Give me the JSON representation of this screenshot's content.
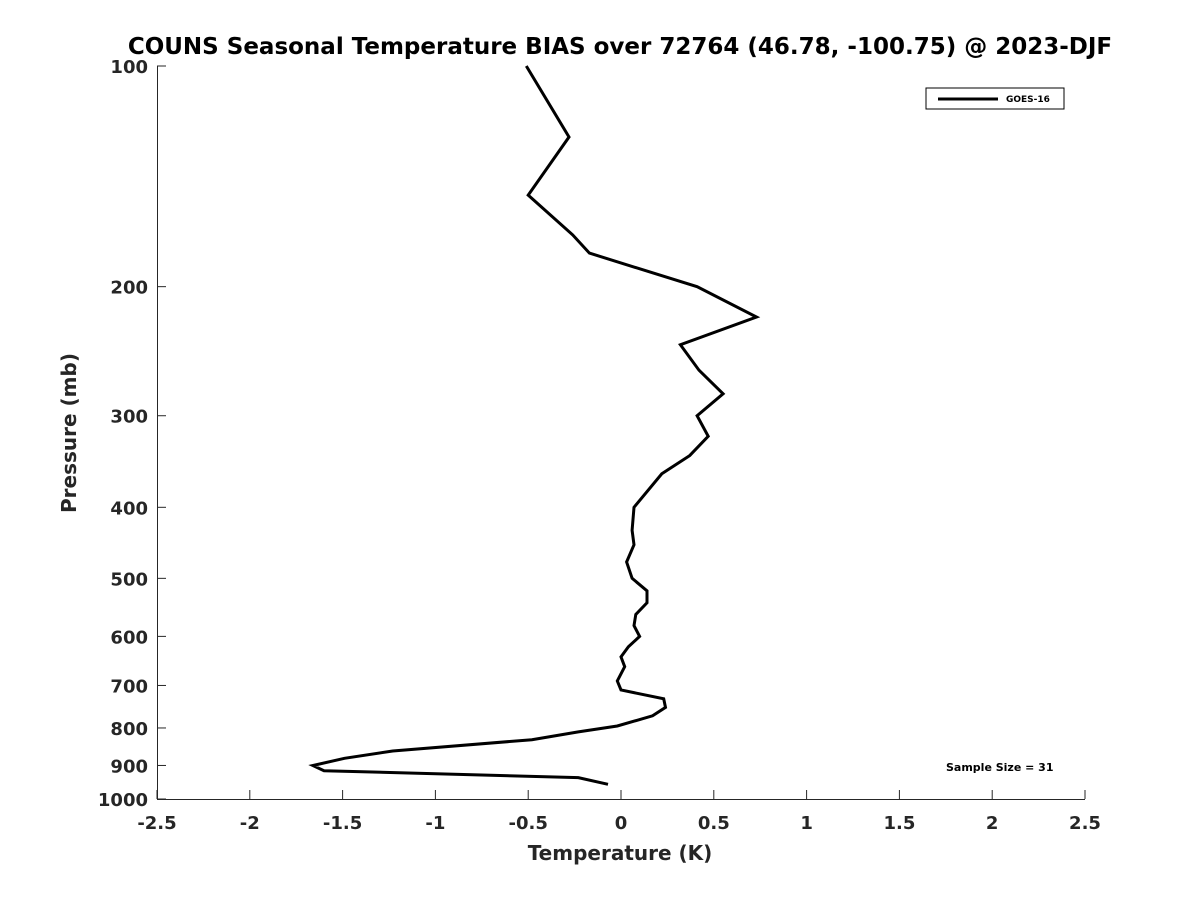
{
  "chart_data": {
    "type": "line",
    "title": "COUNS Seasonal Temperature BIAS over 72764 (46.78, -100.75) @ 2023-DJF",
    "xlabel": "Temperature (K)",
    "ylabel": "Pressure (mb)",
    "xlim": [
      -2.5,
      2.5
    ],
    "ylim": [
      100,
      1000
    ],
    "y_scale": "log",
    "y_reversed": true,
    "x_ticks": [
      "-2.5",
      "-2",
      "-1.5",
      "-1",
      "-0.5",
      "0",
      "0.5",
      "1",
      "1.5",
      "2",
      "2.5"
    ],
    "y_ticks": [
      "100",
      "200",
      "300",
      "400",
      "500",
      "600",
      "700",
      "800",
      "900",
      "1000"
    ],
    "grid": false,
    "legend": "top-right",
    "annotation": "Sample Size = 31",
    "line_color": "#000000",
    "series": [
      {
        "name": "GOES-16",
        "points": [
          [
            -0.51,
            100
          ],
          [
            -0.28,
            125
          ],
          [
            -0.5,
            150
          ],
          [
            -0.26,
            170
          ],
          [
            -0.17,
            180
          ],
          [
            0.41,
            200
          ],
          [
            0.73,
            220
          ],
          [
            0.32,
            240
          ],
          [
            0.42,
            260
          ],
          [
            0.55,
            280
          ],
          [
            0.41,
            300
          ],
          [
            0.47,
            320
          ],
          [
            0.37,
            340
          ],
          [
            0.22,
            360
          ],
          [
            0.07,
            400
          ],
          [
            0.06,
            430
          ],
          [
            0.07,
            450
          ],
          [
            0.03,
            475
          ],
          [
            0.06,
            500
          ],
          [
            0.14,
            520
          ],
          [
            0.14,
            540
          ],
          [
            0.08,
            560
          ],
          [
            0.07,
            580
          ],
          [
            0.1,
            600
          ],
          [
            0.04,
            620
          ],
          [
            0.0,
            640
          ],
          [
            0.02,
            660
          ],
          [
            -0.02,
            690
          ],
          [
            0.0,
            710
          ],
          [
            0.23,
            730
          ],
          [
            0.24,
            750
          ],
          [
            0.17,
            770
          ],
          [
            -0.02,
            795
          ],
          [
            -0.23,
            810
          ],
          [
            -0.48,
            830
          ],
          [
            -1.23,
            860
          ],
          [
            -1.49,
            880
          ],
          [
            -1.66,
            900
          ],
          [
            -1.6,
            915
          ],
          [
            -0.23,
            935
          ],
          [
            -0.07,
            955
          ]
        ]
      }
    ]
  }
}
